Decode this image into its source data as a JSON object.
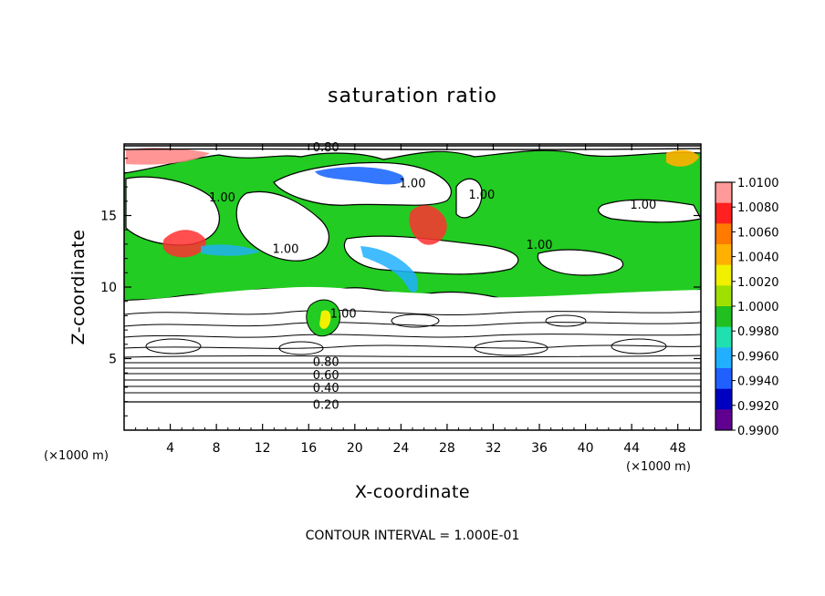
{
  "chart_data": {
    "type": "heatmap",
    "title": "saturation ratio",
    "xlabel": "X-coordinate",
    "ylabel": "Z-coordinate",
    "x_unit": "(×1000 m)",
    "xlim": [
      0,
      50
    ],
    "ylim": [
      0,
      20
    ],
    "x_ticks": [
      4,
      8,
      12,
      16,
      20,
      24,
      28,
      32,
      36,
      40,
      44,
      48
    ],
    "y_ticks": [
      5,
      10,
      15
    ],
    "colorbar": {
      "ticks": [
        "1.0100",
        "1.0080",
        "1.0060",
        "1.0040",
        "1.0020",
        "1.0000",
        "0.9980",
        "0.9960",
        "0.9940",
        "0.9920",
        "0.9900"
      ],
      "colors": [
        "#ff9a9a",
        "#ff2020",
        "#ff7a00",
        "#ffb000",
        "#f0f000",
        "#a0e000",
        "#20c020",
        "#20e0b0",
        "#20b0ff",
        "#2060ff",
        "#0000c0",
        "#600090"
      ],
      "range": [
        0.99,
        1.01
      ]
    },
    "contour_labels": [
      {
        "text": "0.80",
        "x": 17.5,
        "z": 19.8
      },
      {
        "text": "1.00",
        "x": 25.0,
        "z": 17.3
      },
      {
        "text": "1.00",
        "x": 8.5,
        "z": 16.3
      },
      {
        "text": "1.00",
        "x": 31.0,
        "z": 16.5
      },
      {
        "text": "1.00",
        "x": 45.0,
        "z": 15.8
      },
      {
        "text": "1.00",
        "x": 14.0,
        "z": 12.7
      },
      {
        "text": "1.00",
        "x": 36.0,
        "z": 13.0
      },
      {
        "text": "1.00",
        "x": 19.0,
        "z": 8.2
      },
      {
        "text": "0.80",
        "x": 17.5,
        "z": 4.8
      },
      {
        "text": "0.60",
        "x": 17.5,
        "z": 3.9
      },
      {
        "text": "0.40",
        "x": 17.5,
        "z": 3.0
      },
      {
        "text": "0.20",
        "x": 17.5,
        "z": 1.8
      }
    ],
    "contour_interval_text": "CONTOUR INTERVAL = 1.000E-01",
    "grid": false
  }
}
